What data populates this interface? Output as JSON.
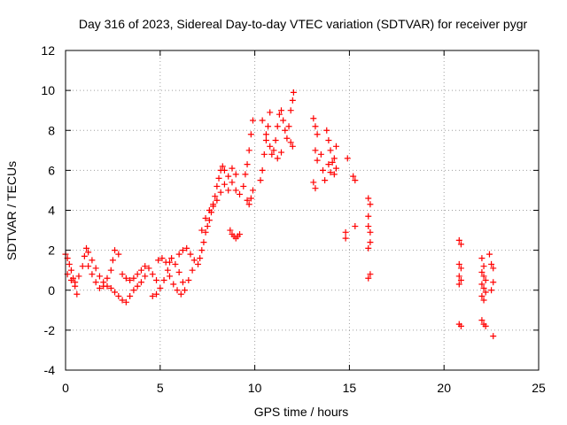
{
  "chart_data": {
    "type": "scatter",
    "title": "Day 316 of 2023, Sidereal Day-to-day VTEC variation (SDTVAR) for receiver pygr",
    "xlabel": "GPS time / hours",
    "ylabel": "SDTVAR / TECUs",
    "xlim": [
      0,
      25
    ],
    "ylim": [
      -4,
      12
    ],
    "xticks": [
      0,
      5,
      10,
      15,
      20,
      25
    ],
    "yticks": [
      -4,
      -2,
      0,
      2,
      4,
      6,
      8,
      10,
      12
    ],
    "grid": true,
    "marker": "+",
    "color": "#ff0000",
    "series": [
      {
        "name": "SDTVAR",
        "points": [
          [
            0.0,
            1.8
          ],
          [
            0.1,
            1.6
          ],
          [
            0.2,
            1.3
          ],
          [
            0.3,
            1.0
          ],
          [
            0.4,
            0.6
          ],
          [
            0.5,
            0.2
          ],
          [
            0.6,
            -0.2
          ],
          [
            0.1,
            0.8
          ],
          [
            0.3,
            0.5
          ],
          [
            0.5,
            0.4
          ],
          [
            0.7,
            0.7
          ],
          [
            0.9,
            1.2
          ],
          [
            1.0,
            1.7
          ],
          [
            1.1,
            2.1
          ],
          [
            1.2,
            1.9
          ],
          [
            1.4,
            1.5
          ],
          [
            1.6,
            1.1
          ],
          [
            1.8,
            0.7
          ],
          [
            2.0,
            0.4
          ],
          [
            2.2,
            0.2
          ],
          [
            1.2,
            1.2
          ],
          [
            1.4,
            0.8
          ],
          [
            1.6,
            0.4
          ],
          [
            1.8,
            0.1
          ],
          [
            2.0,
            0.2
          ],
          [
            2.2,
            0.6
          ],
          [
            2.4,
            1.0
          ],
          [
            2.5,
            1.5
          ],
          [
            2.6,
            2.0
          ],
          [
            2.8,
            1.8
          ],
          [
            2.4,
            0.1
          ],
          [
            2.6,
            -0.1
          ],
          [
            2.8,
            -0.3
          ],
          [
            3.0,
            -0.5
          ],
          [
            3.2,
            -0.6
          ],
          [
            3.4,
            -0.3
          ],
          [
            3.6,
            0.0
          ],
          [
            3.8,
            0.2
          ],
          [
            4.0,
            0.4
          ],
          [
            4.2,
            0.7
          ],
          [
            3.0,
            0.8
          ],
          [
            3.2,
            0.6
          ],
          [
            3.4,
            0.5
          ],
          [
            3.6,
            0.6
          ],
          [
            3.8,
            0.8
          ],
          [
            4.0,
            1.0
          ],
          [
            4.2,
            1.2
          ],
          [
            4.4,
            1.1
          ],
          [
            4.6,
            0.8
          ],
          [
            4.8,
            0.5
          ],
          [
            4.6,
            -0.3
          ],
          [
            4.8,
            -0.2
          ],
          [
            5.0,
            0.1
          ],
          [
            5.2,
            0.5
          ],
          [
            5.4,
            1.0
          ],
          [
            5.5,
            1.4
          ],
          [
            5.6,
            1.6
          ],
          [
            5.8,
            1.3
          ],
          [
            6.0,
            0.9
          ],
          [
            6.2,
            0.4
          ],
          [
            4.9,
            1.5
          ],
          [
            5.1,
            1.6
          ],
          [
            5.3,
            1.4
          ],
          [
            5.5,
            0.7
          ],
          [
            5.7,
            0.3
          ],
          [
            5.9,
            0.0
          ],
          [
            6.1,
            -0.2
          ],
          [
            6.3,
            0.0
          ],
          [
            6.5,
            0.5
          ],
          [
            6.7,
            1.0
          ],
          [
            6.0,
            1.8
          ],
          [
            6.2,
            2.0
          ],
          [
            6.4,
            2.1
          ],
          [
            6.6,
            1.8
          ],
          [
            6.8,
            1.5
          ],
          [
            7.0,
            1.3
          ],
          [
            7.1,
            1.6
          ],
          [
            7.2,
            2.0
          ],
          [
            7.3,
            2.4
          ],
          [
            7.4,
            2.9
          ],
          [
            7.5,
            3.2
          ],
          [
            7.6,
            3.5
          ],
          [
            7.7,
            3.9
          ],
          [
            7.8,
            4.3
          ],
          [
            7.9,
            4.7
          ],
          [
            8.0,
            5.2
          ],
          [
            8.1,
            5.6
          ],
          [
            8.2,
            6.0
          ],
          [
            8.3,
            6.2
          ],
          [
            8.4,
            6.0
          ],
          [
            7.2,
            3.0
          ],
          [
            7.4,
            3.6
          ],
          [
            7.6,
            4.0
          ],
          [
            7.8,
            4.2
          ],
          [
            8.0,
            4.5
          ],
          [
            8.2,
            4.9
          ],
          [
            8.4,
            5.3
          ],
          [
            8.6,
            5.7
          ],
          [
            8.8,
            6.1
          ],
          [
            9.0,
            5.8
          ],
          [
            8.7,
            3.0
          ],
          [
            8.8,
            2.8
          ],
          [
            8.9,
            2.7
          ],
          [
            9.0,
            2.6
          ],
          [
            9.1,
            2.7
          ],
          [
            9.2,
            2.8
          ],
          [
            8.6,
            5.0
          ],
          [
            8.8,
            5.4
          ],
          [
            9.0,
            5.0
          ],
          [
            9.2,
            4.8
          ],
          [
            9.4,
            5.2
          ],
          [
            9.5,
            5.8
          ],
          [
            9.6,
            6.3
          ],
          [
            9.7,
            7.0
          ],
          [
            9.8,
            7.8
          ],
          [
            9.9,
            8.5
          ],
          [
            9.6,
            4.5
          ],
          [
            9.7,
            4.3
          ],
          [
            9.8,
            4.6
          ],
          [
            9.9,
            5.0
          ],
          [
            10.3,
            5.5
          ],
          [
            10.4,
            6.0
          ],
          [
            10.5,
            6.8
          ],
          [
            10.6,
            7.5
          ],
          [
            10.7,
            8.2
          ],
          [
            10.8,
            8.9
          ],
          [
            10.4,
            8.5
          ],
          [
            10.6,
            7.8
          ],
          [
            10.8,
            7.2
          ],
          [
            10.9,
            6.8
          ],
          [
            11.0,
            7.0
          ],
          [
            11.1,
            7.5
          ],
          [
            11.2,
            8.2
          ],
          [
            11.3,
            8.8
          ],
          [
            11.4,
            9.0
          ],
          [
            11.5,
            8.5
          ],
          [
            11.6,
            8.0
          ],
          [
            11.7,
            7.6
          ],
          [
            11.2,
            6.6
          ],
          [
            11.4,
            6.9
          ],
          [
            11.8,
            8.2
          ],
          [
            11.9,
            9.0
          ],
          [
            12.0,
            9.5
          ],
          [
            12.05,
            9.9
          ],
          [
            11.9,
            7.4
          ],
          [
            12.0,
            7.2
          ],
          [
            13.1,
            8.6
          ],
          [
            13.2,
            8.2
          ],
          [
            13.3,
            7.8
          ],
          [
            13.2,
            7.0
          ],
          [
            13.3,
            6.5
          ],
          [
            13.1,
            5.4
          ],
          [
            13.2,
            5.1
          ],
          [
            13.5,
            6.8
          ],
          [
            13.6,
            6.0
          ],
          [
            13.7,
            5.5
          ],
          [
            13.8,
            8.0
          ],
          [
            13.9,
            7.5
          ],
          [
            14.0,
            7.0
          ],
          [
            14.1,
            6.4
          ],
          [
            14.2,
            5.8
          ],
          [
            14.3,
            6.1
          ],
          [
            13.9,
            6.3
          ],
          [
            14.0,
            5.9
          ],
          [
            14.2,
            6.6
          ],
          [
            14.3,
            7.2
          ],
          [
            14.9,
            6.6
          ],
          [
            14.8,
            2.9
          ],
          [
            14.8,
            2.6
          ],
          [
            15.2,
            5.7
          ],
          [
            15.3,
            5.5
          ],
          [
            15.3,
            3.2
          ],
          [
            16.0,
            4.6
          ],
          [
            16.1,
            4.3
          ],
          [
            16.0,
            3.7
          ],
          [
            16.0,
            3.2
          ],
          [
            16.1,
            2.9
          ],
          [
            16.1,
            2.4
          ],
          [
            16.0,
            2.1
          ],
          [
            16.1,
            0.8
          ],
          [
            16.0,
            0.6
          ],
          [
            20.8,
            2.5
          ],
          [
            20.9,
            2.3
          ],
          [
            20.8,
            1.3
          ],
          [
            20.9,
            1.1
          ],
          [
            20.8,
            0.7
          ],
          [
            20.9,
            0.5
          ],
          [
            20.8,
            0.3
          ],
          [
            20.8,
            -1.7
          ],
          [
            20.9,
            -1.8
          ],
          [
            22.0,
            1.6
          ],
          [
            22.1,
            1.2
          ],
          [
            22.0,
            0.9
          ],
          [
            22.1,
            0.7
          ],
          [
            22.2,
            0.5
          ],
          [
            22.0,
            0.3
          ],
          [
            22.1,
            0.1
          ],
          [
            22.2,
            -0.1
          ],
          [
            22.0,
            -0.3
          ],
          [
            22.1,
            -0.5
          ],
          [
            22.0,
            -1.5
          ],
          [
            22.1,
            -1.7
          ],
          [
            22.2,
            -1.8
          ],
          [
            22.4,
            1.8
          ],
          [
            22.5,
            1.3
          ],
          [
            22.6,
            1.1
          ],
          [
            22.6,
            0.4
          ],
          [
            22.5,
            0.0
          ],
          [
            22.6,
            -2.3
          ]
        ]
      }
    ]
  }
}
